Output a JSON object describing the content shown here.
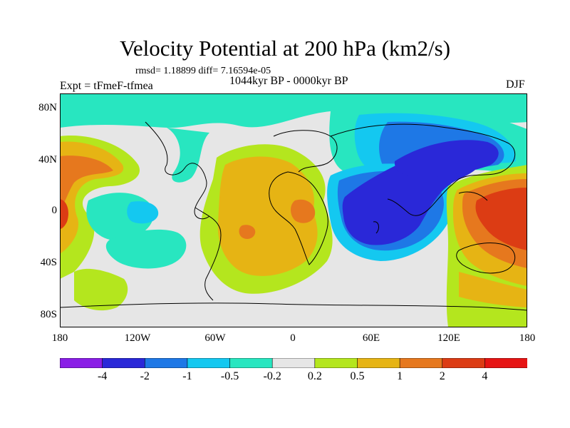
{
  "title": "Velocity Potential at 200 hPa (km2/s)",
  "stats": "rmsd= 1.18899  diff= 7.16594e-05",
  "experiment": "Expt = tFmeF-tfmea",
  "period": "1044kyr BP - 0000kyr BP",
  "season": "DJF",
  "y_axis_labels": [
    "80N",
    "40N",
    "0",
    "40S",
    "80S"
  ],
  "x_axis_labels": [
    "180",
    "120W",
    "60W",
    "0",
    "60E",
    "120E",
    "180"
  ],
  "colorbar": {
    "labels": [
      "-4",
      "-2",
      "-1",
      "-0.5",
      "-0.2",
      "0.2",
      "0.5",
      "1",
      "2",
      "4"
    ],
    "colors": [
      "#8a1ee6",
      "#2a28d8",
      "#1e78e6",
      "#14c8f0",
      "#28e6c0",
      "#e6e6e6",
      "#b4e61e",
      "#e6b414",
      "#e6781e",
      "#dc3c14",
      "#e61414"
    ]
  },
  "colors": {
    "neutral": "#e6e6e6",
    "light_green": "#b4e61e",
    "gold": "#e6b414",
    "orange": "#e6781e",
    "red_orange": "#dc3c14",
    "teal": "#28e6c0",
    "cyan": "#14c8f0",
    "blue": "#1e78e6",
    "deep_blue": "#2a28d8"
  }
}
